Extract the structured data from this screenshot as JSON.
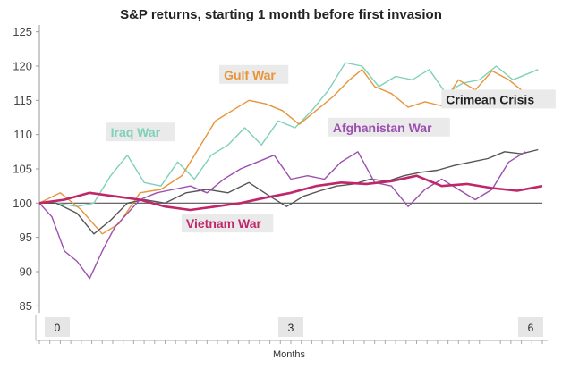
{
  "chart_data": {
    "type": "line",
    "title": "S&P returns, starting 1 month before first invasion",
    "xlabel": "Months",
    "ylabel": "",
    "xlim": [
      0,
      6
    ],
    "ylim": [
      84,
      126
    ],
    "xticks": [
      0,
      3,
      6
    ],
    "xtick_labels": [
      "0",
      "3",
      "6"
    ],
    "yticks": [
      85,
      90,
      95,
      100,
      105,
      110,
      115,
      120,
      125
    ],
    "ytick_labels": [
      "85",
      "90",
      "95",
      "100",
      "105",
      "110",
      "115",
      "120",
      "125"
    ],
    "baseline": 100,
    "grid": false,
    "legend": "inline-labels",
    "series": [
      {
        "name": "Gulf War",
        "color": "#E8943A",
        "label_pos": {
          "x": 2.2,
          "y": 118.2
        },
        "x": [
          0,
          0.25,
          0.5,
          0.75,
          0.95,
          1.2,
          1.45,
          1.7,
          1.9,
          2.1,
          2.3,
          2.5,
          2.7,
          2.9,
          3.1,
          3.3,
          3.5,
          3.7,
          3.85,
          4.0,
          4.2,
          4.4,
          4.6,
          4.8,
          5.0,
          5.2,
          5.4,
          5.6,
          5.75
        ],
        "values": [
          100,
          101.5,
          99,
          95.5,
          97,
          101.5,
          102,
          104,
          108,
          112,
          113.5,
          115,
          114.5,
          113.5,
          111.5,
          113.5,
          115.5,
          118,
          119.5,
          117,
          116,
          114,
          114.8,
          114.2,
          118,
          116.5,
          119.3,
          118,
          116.5
        ]
      },
      {
        "name": "Iraq War",
        "color": "#7FD1B9",
        "label_pos": {
          "x": 0.85,
          "y": 109.8
        },
        "x": [
          0,
          0.2,
          0.45,
          0.65,
          0.85,
          1.05,
          1.25,
          1.45,
          1.65,
          1.85,
          2.05,
          2.25,
          2.45,
          2.65,
          2.85,
          3.05,
          3.25,
          3.45,
          3.65,
          3.85,
          4.05,
          4.25,
          4.45,
          4.65,
          4.85,
          5.05,
          5.25,
          5.45,
          5.65,
          5.95
        ],
        "values": [
          100,
          100,
          99.5,
          100,
          104,
          107,
          103,
          102.5,
          106,
          103.5,
          107,
          108.5,
          111,
          108.5,
          112,
          111,
          113.5,
          116.5,
          120.5,
          120,
          117,
          118.5,
          118,
          119.5,
          116,
          117.5,
          118,
          120,
          118,
          119.5
        ]
      },
      {
        "name": "Crimean Crisis",
        "color": "#555555",
        "label_pos": {
          "x": 4.85,
          "y": 114.6
        },
        "x": [
          0,
          0.2,
          0.45,
          0.65,
          0.85,
          1.05,
          1.25,
          1.5,
          1.75,
          2.0,
          2.25,
          2.5,
          2.75,
          2.95,
          3.15,
          3.35,
          3.55,
          3.75,
          3.95,
          4.15,
          4.35,
          4.55,
          4.75,
          4.95,
          5.15,
          5.35,
          5.55,
          5.75,
          5.95
        ],
        "values": [
          100,
          100,
          98.5,
          95.5,
          97.5,
          100,
          100.5,
          100,
          101.5,
          102,
          101.5,
          103,
          101,
          99.5,
          101,
          101.8,
          102.5,
          102.8,
          103.5,
          103.2,
          104,
          104.5,
          104.8,
          105.5,
          106,
          106.5,
          107.5,
          107.2,
          107.8
        ]
      },
      {
        "name": "Afghanistan War",
        "color": "#9B4FB0",
        "label_pos": {
          "x": 3.5,
          "y": 110.5
        },
        "x": [
          0,
          0.15,
          0.3,
          0.45,
          0.6,
          0.75,
          0.9,
          1.05,
          1.2,
          1.4,
          1.6,
          1.8,
          2.0,
          2.2,
          2.4,
          2.6,
          2.8,
          3.0,
          3.2,
          3.4,
          3.6,
          3.8,
          4.0,
          4.2,
          4.4,
          4.6,
          4.8,
          5.0,
          5.2,
          5.4,
          5.6,
          5.8
        ],
        "values": [
          100,
          98,
          93,
          91.5,
          89,
          93,
          96.5,
          98.5,
          100.5,
          101.5,
          102,
          102.5,
          101.5,
          103.5,
          105,
          106,
          107,
          103.5,
          104,
          103.5,
          106,
          107.5,
          103,
          102.5,
          99.5,
          102,
          103.5,
          102,
          100.5,
          102,
          106,
          107.5
        ]
      },
      {
        "name": "Vietnam War",
        "color": "#C0266A",
        "label_pos": {
          "x": 1.75,
          "y": 96.5
        },
        "x": [
          0,
          0.3,
          0.6,
          0.9,
          1.2,
          1.5,
          1.8,
          2.1,
          2.4,
          2.7,
          3.0,
          3.3,
          3.6,
          3.9,
          4.2,
          4.5,
          4.8,
          5.1,
          5.4,
          5.7,
          6.0
        ],
        "values": [
          100,
          100.5,
          101.5,
          101,
          100.5,
          99.5,
          99,
          99.5,
          100,
          100.8,
          101.5,
          102.5,
          103,
          102.8,
          103.2,
          104,
          102.5,
          102.8,
          102.2,
          101.8,
          102.5
        ]
      }
    ]
  }
}
